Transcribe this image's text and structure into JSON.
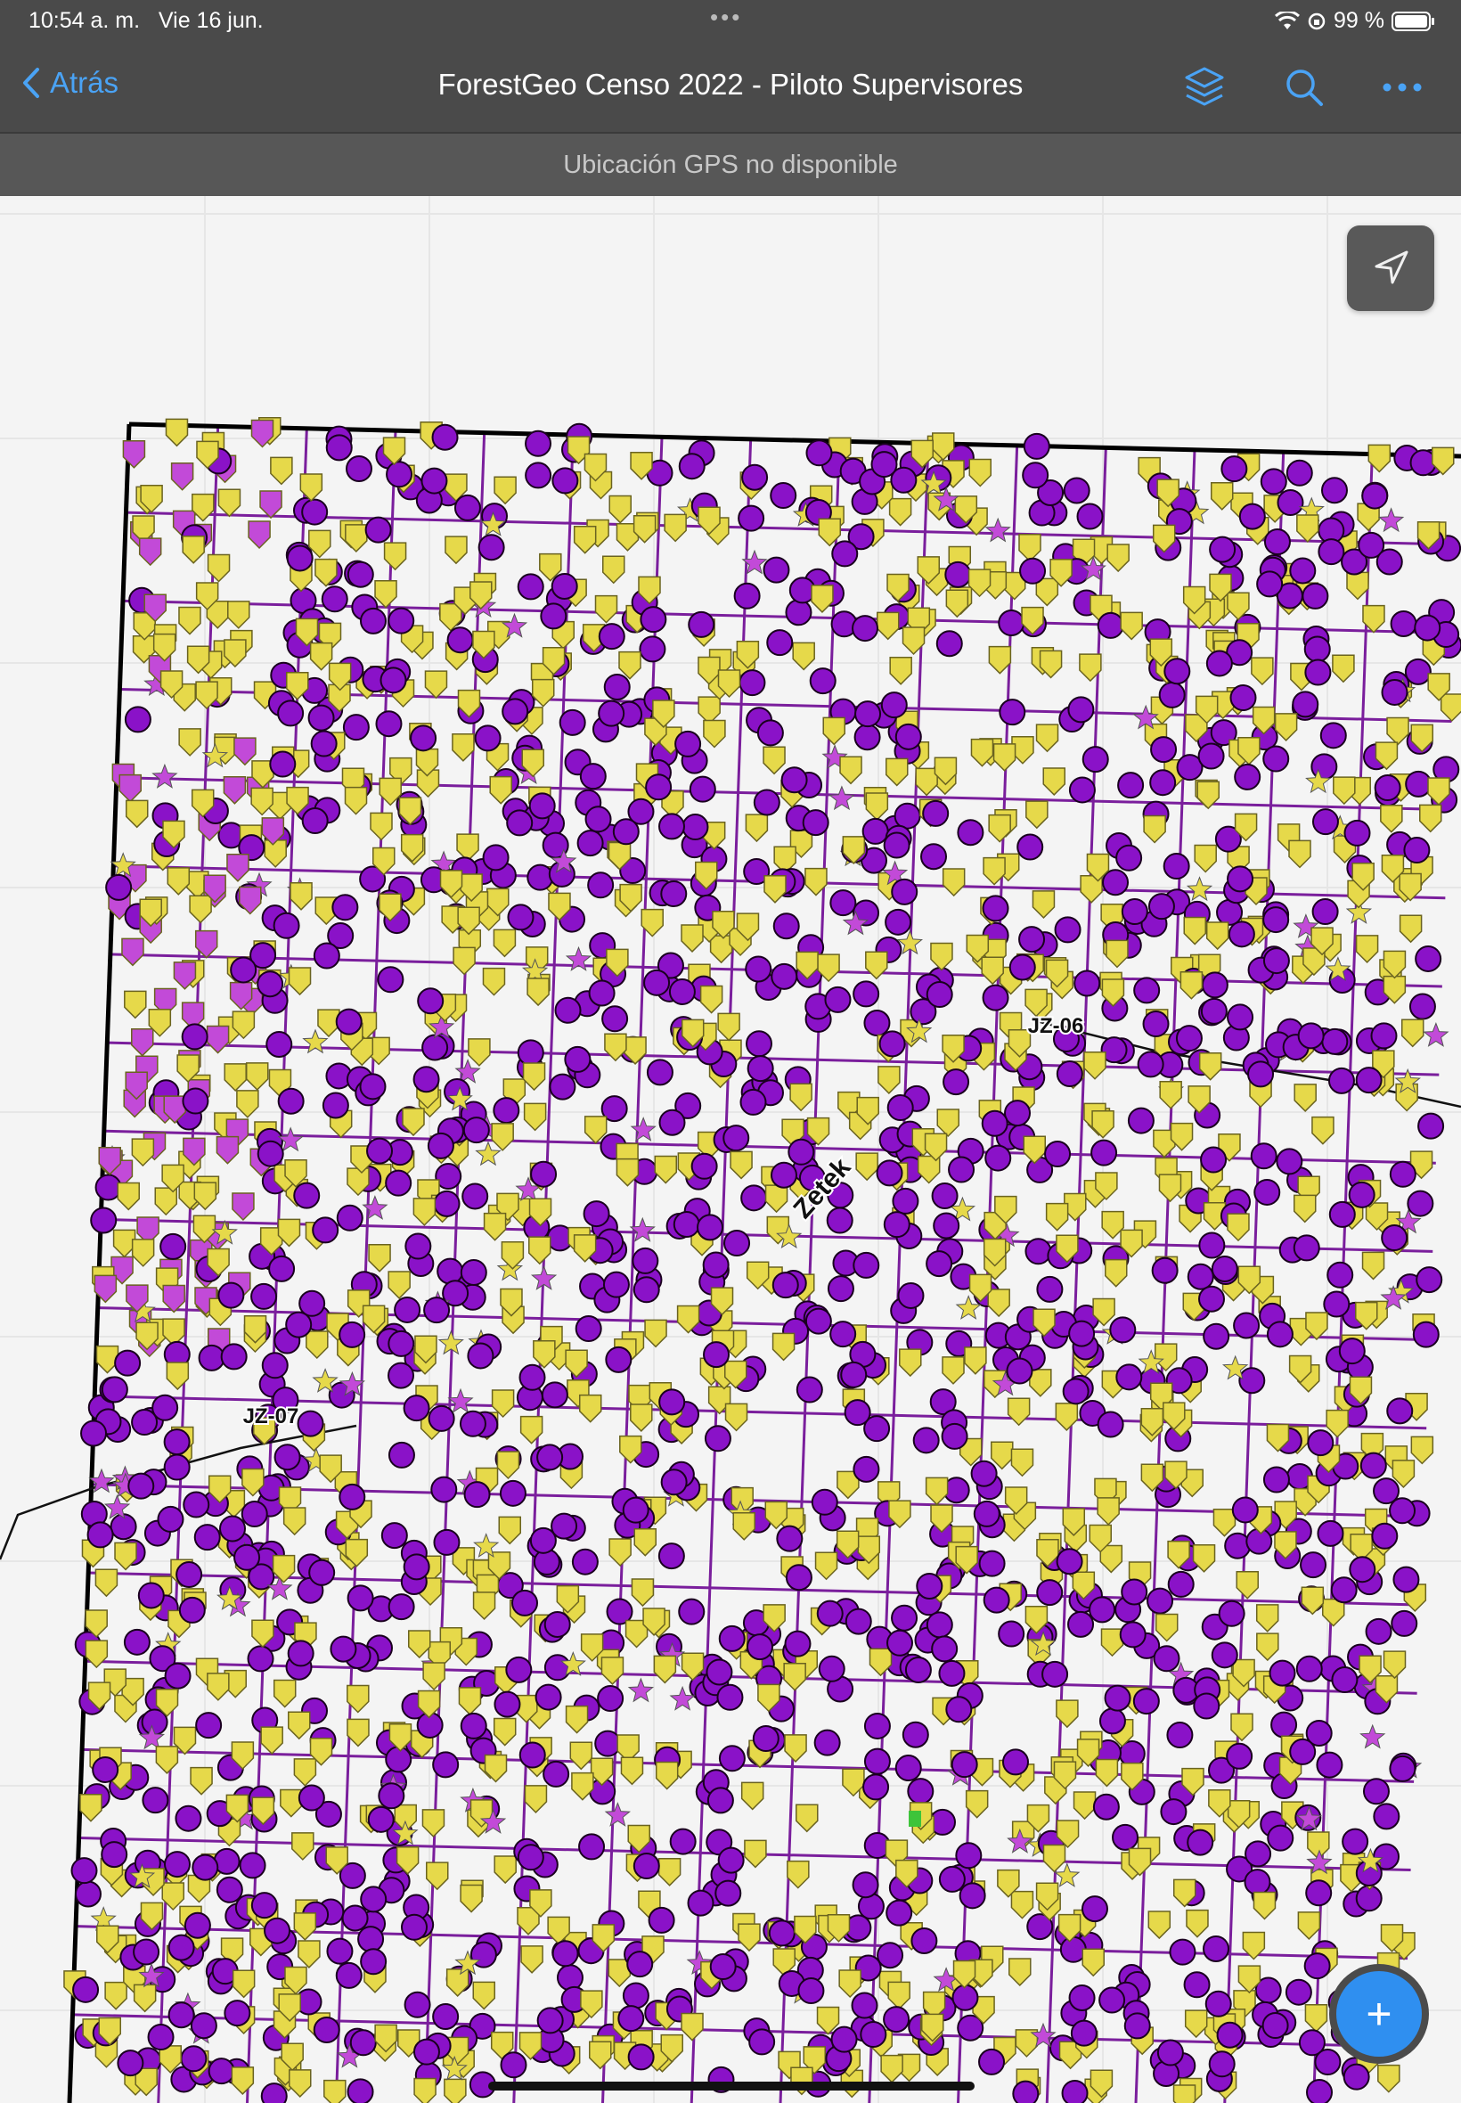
{
  "status": {
    "time": "10:54 a. m.",
    "date": "Vie 16 jun.",
    "battery": "99 %"
  },
  "nav": {
    "back_label": "Atrás",
    "title": "ForestGeo Censo 2022 - Piloto Supervisores",
    "icons": [
      "layers-icon",
      "search-icon",
      "more-icon"
    ]
  },
  "gps_message": "Ubicación GPS no disponible",
  "map": {
    "labels": {
      "jz06": "JZ-06",
      "jz07": "JZ-07",
      "plot": "Zetek"
    },
    "colors": {
      "purple_point": "#8a12c8",
      "yellow_pin": "#e6d94a",
      "magenta_pin": "#c24ad8",
      "grid_line": "#7a1e9c",
      "boundary": "#000000",
      "fab": "#2f8ff0"
    }
  },
  "fab_label": "+"
}
